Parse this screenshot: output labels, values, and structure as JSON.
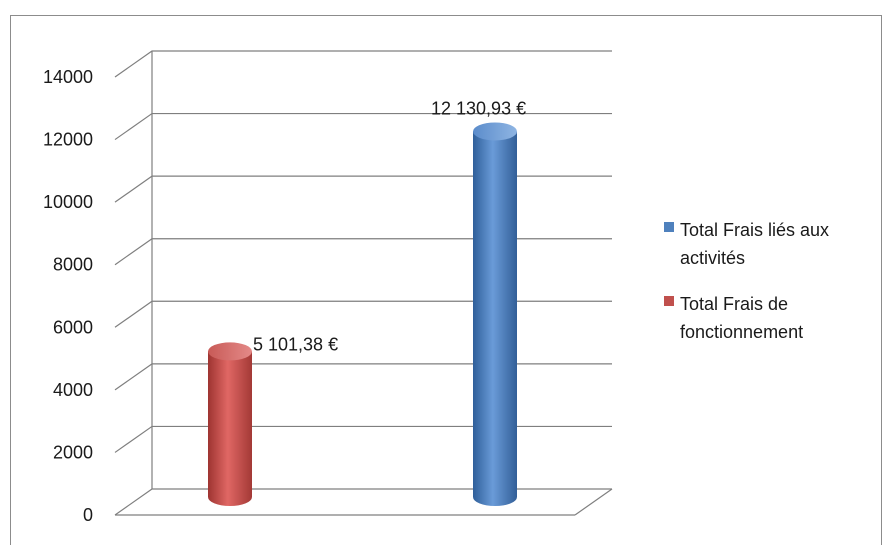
{
  "chart_data": {
    "type": "bar",
    "categories": [
      "Total Frais de fonctionnement",
      "Total Frais liés aux activités"
    ],
    "values": [
      5101.38,
      12130.93
    ],
    "data_labels": [
      "5 101,38 €",
      "12 130,93 €"
    ],
    "colors": [
      "#c0504d",
      "#4f81bd"
    ],
    "title": "",
    "xlabel": "",
    "ylabel": "",
    "ylim": [
      0,
      14000
    ],
    "yticks": [
      0,
      2000,
      4000,
      6000,
      8000,
      10000,
      12000,
      14000
    ],
    "grid": true,
    "legend_position": "right",
    "legend": [
      {
        "lines": [
          "Total Frais liés aux",
          "activités"
        ],
        "color": "#4f81bd"
      },
      {
        "lines": [
          "Total Frais de",
          "fonctionnement"
        ],
        "color": "#c0504d"
      }
    ]
  }
}
